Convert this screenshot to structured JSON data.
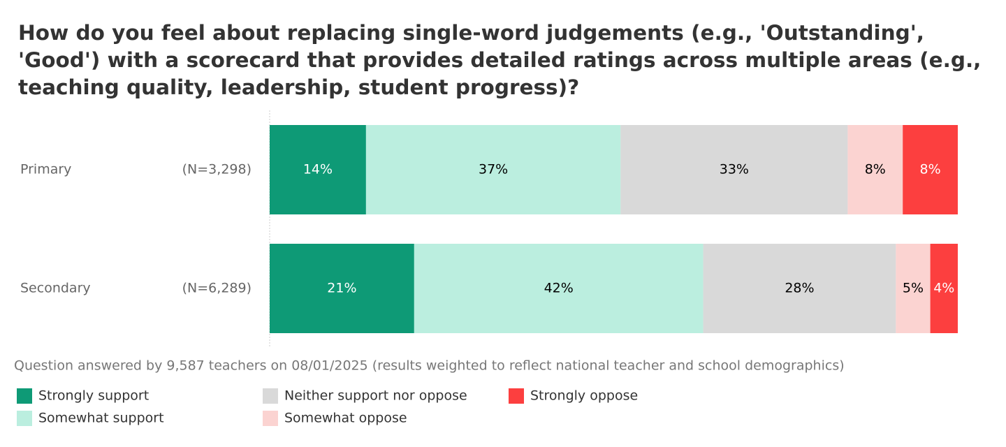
{
  "chart_data": {
    "type": "stacked-bar",
    "orientation": "horizontal",
    "title": "How do you feel about replacing single-word judgements (e.g., 'Outstanding', 'Good') with a scorecard that provides detailed ratings across multiple areas (e.g., teaching quality, leadership, student progress)?",
    "categories": [
      "Primary",
      "Secondary"
    ],
    "category_notes": [
      "(N=3,298)",
      "(N=6,289)"
    ],
    "xlim": [
      0,
      100
    ],
    "series": [
      {
        "name": "Strongly support",
        "color": "#0e9a76",
        "label_color": "#ffffff",
        "values": [
          14,
          21
        ],
        "value_labels": [
          "14%",
          "21%"
        ]
      },
      {
        "name": "Somewhat support",
        "color": "#bbeedf",
        "label_color": "#000000",
        "values": [
          37,
          42
        ],
        "value_labels": [
          "37%",
          "42%"
        ]
      },
      {
        "name": "Neither support nor oppose",
        "color": "#d9d9d9",
        "label_color": "#000000",
        "values": [
          33,
          28
        ],
        "value_labels": [
          "33%",
          "28%"
        ]
      },
      {
        "name": "Somewhat oppose",
        "color": "#fbd3d1",
        "label_color": "#000000",
        "values": [
          8,
          5
        ],
        "value_labels": [
          "8%",
          "5%"
        ]
      },
      {
        "name": "Strongly oppose",
        "color": "#fc3f3f",
        "label_color": "#ffffff",
        "values": [
          8,
          4
        ],
        "value_labels": [
          "8%",
          "4%"
        ]
      }
    ],
    "footnote": "Question answered by 9,587 teachers on 08/01/2025 (results weighted to reflect national teacher and school demographics)",
    "legend_position": "bottom"
  }
}
